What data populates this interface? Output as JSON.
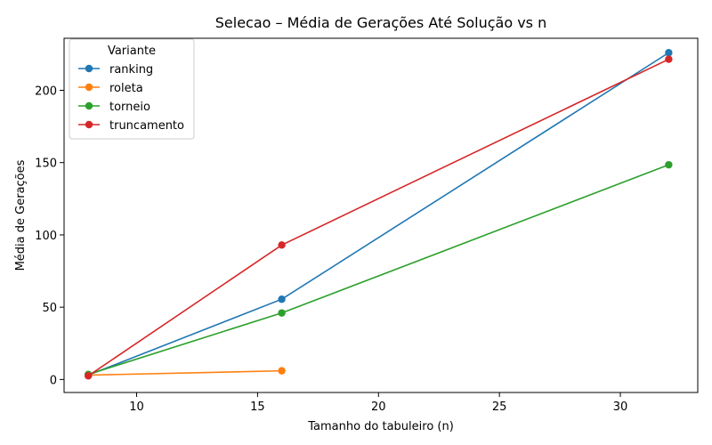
{
  "chart_data": {
    "type": "line",
    "title": "Selecao – Média de Gerações Até Solução vs n",
    "xlabel": "Tamanho do tabuleiro (n)",
    "ylabel": "Média de Gerações",
    "xlim": [
      7,
      33.2
    ],
    "ylim": [
      -9,
      236
    ],
    "xticks": [
      10,
      15,
      20,
      25,
      30
    ],
    "yticks": [
      0,
      50,
      100,
      150,
      200
    ],
    "legend_title": "Variante",
    "legend_position": "top-left",
    "grid": false,
    "series": [
      {
        "name": "ranking",
        "color": "#1f77b4",
        "x": [
          8,
          16,
          32
        ],
        "y": [
          3,
          55.5,
          226
        ]
      },
      {
        "name": "roleta",
        "color": "#ff7f0e",
        "x": [
          8,
          16
        ],
        "y": [
          3,
          6
        ]
      },
      {
        "name": "torneio",
        "color": "#2ca02c",
        "x": [
          8,
          16,
          32
        ],
        "y": [
          3.5,
          46,
          148.5
        ]
      },
      {
        "name": "truncamento",
        "color": "#d62728",
        "x": [
          8,
          16,
          32
        ],
        "y": [
          2.5,
          93,
          221.5
        ]
      }
    ]
  }
}
